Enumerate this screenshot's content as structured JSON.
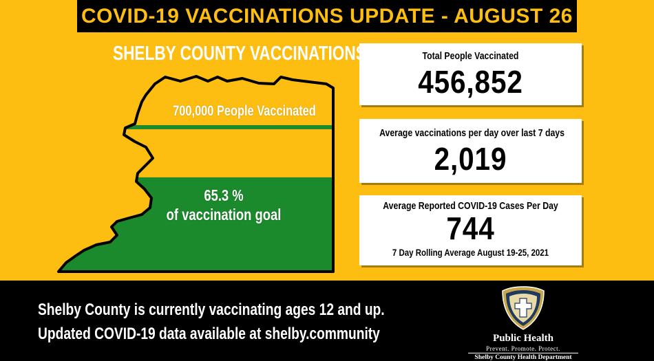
{
  "header": {
    "title": "COVID-19 VACCINATIONS UPDATE - AUGUST 26"
  },
  "map": {
    "title": "SHELBY COUNTY VACCINATIONS",
    "goal_label": "700,000 People Vaccinated",
    "progress_line_1": "65.3 %",
    "progress_line_2": "of vaccination goal",
    "progress_percent": 65.3,
    "fill_color": "#1A8A2C",
    "empty_color": "#FDBD11",
    "goal_line_color": "#1A8A2C"
  },
  "stats": {
    "total_vaccinated_label": "Total People Vaccinated",
    "total_vaccinated_value": "456,852",
    "avg_per_day_label": "Average vaccinations per day over last 7 days",
    "avg_per_day_value": "2,019",
    "avg_cases_label": "Average Reported COVID-19 Cases Per Day",
    "avg_cases_value": "744",
    "avg_cases_note": "7 Day Rolling Average August 19-25, 2021"
  },
  "footer": {
    "line_1": "Shelby County is currently vaccinating ages 12 and up.",
    "line_2": "Updated COVID-19 data available at shelby.community"
  },
  "logo": {
    "title": "Public Health",
    "tagline": "Prevent. Promote. Protect.",
    "department": "Shelby County Health Department",
    "icon": "shield-cross-icon"
  },
  "colors": {
    "background": "#FDBD11",
    "dark": "#000000",
    "accent_green": "#1A8A2C",
    "text_light": "#FFFFFF",
    "logo_gold": "#C9A64A",
    "logo_navy": "#1F3A5F"
  }
}
